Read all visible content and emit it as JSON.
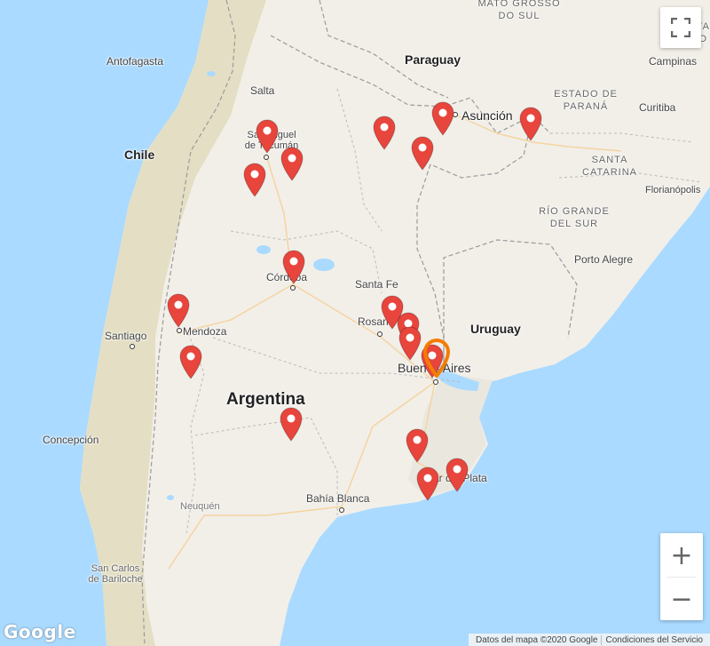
{
  "map": {
    "countries": [
      {
        "name": "Argentina",
        "key": "argentina"
      },
      {
        "name": "Chile",
        "key": "chile"
      },
      {
        "name": "Paraguay",
        "key": "paraguay"
      },
      {
        "name": "Uruguay",
        "key": "uruguay"
      }
    ],
    "regions": [
      {
        "name": "MATO GROSSO\nDO SUL",
        "key": "mato-grosso"
      },
      {
        "name": "ESTA\nSÃO",
        "key": "sao-paulo"
      },
      {
        "name": "ESTADO DE\nPARANÁ",
        "key": "parana"
      },
      {
        "name": "SANTA\nCATARINA",
        "key": "santa-catarina"
      },
      {
        "name": "RÍO GRANDE\nDEL SUR",
        "key": "rio-grande"
      }
    ],
    "cities": [
      {
        "name": "Antofagasta",
        "key": "antofagasta"
      },
      {
        "name": "Salta",
        "key": "salta"
      },
      {
        "name": "San Miguel\nde Tucumán",
        "key": "tucuman"
      },
      {
        "name": "Asunción",
        "key": "asuncion"
      },
      {
        "name": "Campinas",
        "key": "campinas"
      },
      {
        "name": "Curitiba",
        "key": "curitiba"
      },
      {
        "name": "Florianópolis",
        "key": "florianopolis"
      },
      {
        "name": "Porto Alegre",
        "key": "porto-alegre"
      },
      {
        "name": "Córdoba",
        "key": "cordoba"
      },
      {
        "name": "Santa Fe",
        "key": "santa-fe"
      },
      {
        "name": "Rosario",
        "key": "rosario"
      },
      {
        "name": "Santiago",
        "key": "santiago"
      },
      {
        "name": "Mendoza",
        "key": "mendoza"
      },
      {
        "name": "Buenos Aires",
        "key": "buenos-aires"
      },
      {
        "name": "Concepción",
        "key": "concepcion"
      },
      {
        "name": "Mar del Plata",
        "key": "mar-del-plata"
      },
      {
        "name": "Bahía Blanca",
        "key": "bahia-blanca"
      },
      {
        "name": "Neuquén",
        "key": "neuquen"
      },
      {
        "name": "San Carlos\nde Bariloche",
        "key": "bariloche"
      }
    ],
    "markers": {
      "red_count": 20,
      "selected_count": 1,
      "red_color": "#e8453c",
      "selected_color": "#f57c00"
    }
  },
  "controls": {
    "fullscreen_icon": "fullscreen-icon",
    "zoom_in_label": "+",
    "zoom_out_label": "−"
  },
  "branding": {
    "logo": "Google"
  },
  "attribution": {
    "map_data": "Datos del mapa ©2020 Google",
    "terms": "Condiciones del Servicio"
  },
  "colors": {
    "water": "#aadaff",
    "land": "#f2efe9",
    "andes": "#e4dfc4",
    "border": "#9a9a9a"
  }
}
